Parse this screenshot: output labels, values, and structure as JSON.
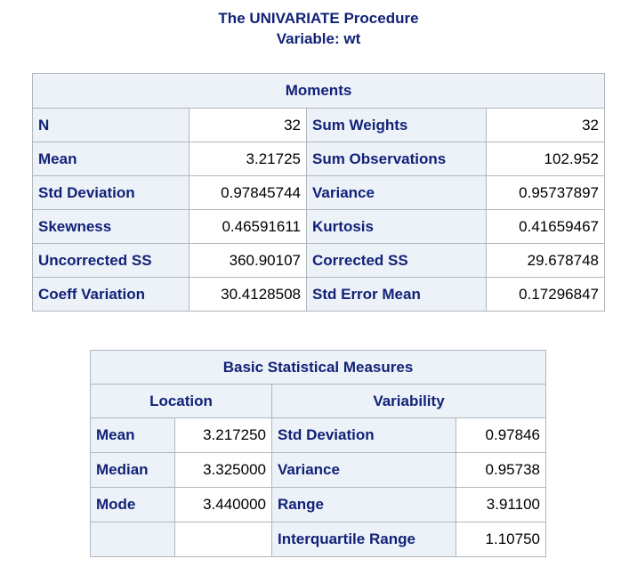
{
  "title": {
    "procedure": "The UNIVARIATE Procedure",
    "variable": "Variable: wt"
  },
  "moments": {
    "header": "Moments",
    "rows": [
      {
        "label1": "N",
        "value1": "32",
        "label2": "Sum Weights",
        "value2": "32"
      },
      {
        "label1": "Mean",
        "value1": "3.21725",
        "label2": "Sum Observations",
        "value2": "102.952"
      },
      {
        "label1": "Std Deviation",
        "value1": "0.97845744",
        "label2": "Variance",
        "value2": "0.95737897"
      },
      {
        "label1": "Skewness",
        "value1": "0.46591611",
        "label2": "Kurtosis",
        "value2": "0.41659467"
      },
      {
        "label1": "Uncorrected SS",
        "value1": "360.90107",
        "label2": "Corrected SS",
        "value2": "29.678748"
      },
      {
        "label1": "Coeff Variation",
        "value1": "30.4128508",
        "label2": "Std Error Mean",
        "value2": "0.17296847"
      }
    ]
  },
  "basic": {
    "header": "Basic Statistical Measures",
    "location_header": "Location",
    "variability_header": "Variability",
    "rows": [
      {
        "loc_label": "Mean",
        "loc_value": "3.217250",
        "var_label": "Std Deviation",
        "var_value": "0.97846"
      },
      {
        "loc_label": "Median",
        "loc_value": "3.325000",
        "var_label": "Variance",
        "var_value": "0.95738"
      },
      {
        "loc_label": "Mode",
        "loc_value": "3.440000",
        "var_label": "Range",
        "var_value": "3.91100"
      },
      {
        "loc_label": "",
        "loc_value": "",
        "var_label": "Interquartile Range",
        "var_value": "1.10750"
      }
    ]
  },
  "colors": {
    "header_bg": "#edf2f9",
    "header_text": "#112277",
    "border": "#b0b7bb"
  }
}
